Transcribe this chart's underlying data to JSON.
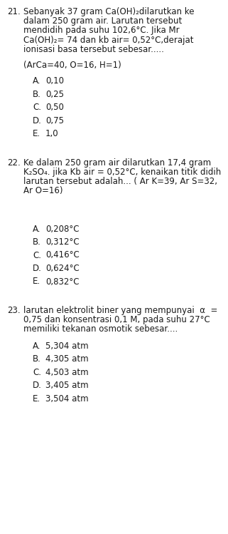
{
  "bg_color": "#ffffff",
  "text_color": "#1a1a1a",
  "font_size": 8.5,
  "q21": {
    "number": "21.",
    "lines": [
      "Sebanyak 37 gram Ca(OH)₂dilarutkan ke",
      "dalam 250 gram air. Larutan tersebut",
      "mendidih pada suhu 102,6°C. Jika Mr",
      "Ca(OH)₂= 74 dan kb air= 0,52°C,derajat",
      "ionisasi basa tersebut sebesar....."
    ],
    "subline": "(ArCa=40, O=16, H=1)",
    "options": [
      [
        "A.",
        "0,10"
      ],
      [
        "B.",
        "0,25"
      ],
      [
        "C.",
        "0,50"
      ],
      [
        "D.",
        "0,75"
      ],
      [
        "E.",
        "1,0"
      ]
    ]
  },
  "q22": {
    "number": "22.",
    "lines": [
      "Ke dalam 250 gram air dilarutkan 17,4 gram",
      "K₂SO₄. jika Kb air = 0,52°C, kenaikan titik didih",
      "larutan tersebut adalah... ( Ar K=39, Ar S=32,",
      "Ar O=16)"
    ],
    "options": [
      [
        "A.",
        "0,208°C"
      ],
      [
        "B.",
        "0,312°C"
      ],
      [
        "C.",
        "0,416°C"
      ],
      [
        "D.",
        "0,624°C"
      ],
      [
        "E.",
        "0,832°C"
      ]
    ]
  },
  "q23": {
    "number": "23.",
    "lines": [
      "larutan elektrolit biner yang mempunyai  α  =",
      "0,75 dan konsentrasi 0,1 M, pada suhu 27°C",
      "memiliki tekanan osmotik sebesar...."
    ],
    "options": [
      [
        "A.",
        "5,304 atm"
      ],
      [
        "B.",
        "4,305 atm"
      ],
      [
        "C.",
        "4,503 atm"
      ],
      [
        "D.",
        "3,405 atm"
      ],
      [
        "E.",
        "3,504 atm"
      ]
    ]
  }
}
